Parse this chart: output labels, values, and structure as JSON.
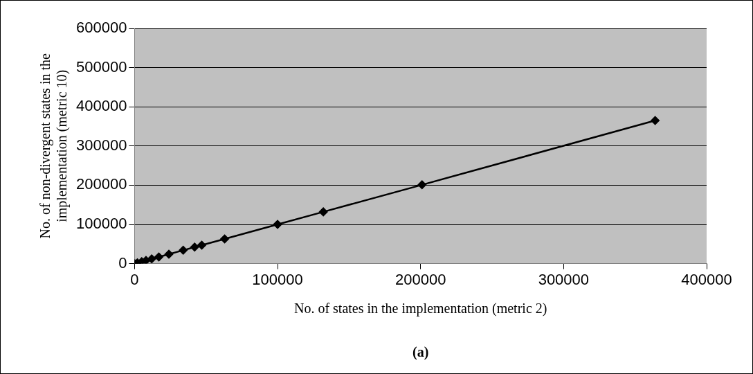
{
  "chart_data": {
    "type": "line",
    "xlabel": "No. of states in the implementation (metric 2)",
    "ylabel": "No. of non-divergent states in the implementation (metric 10)",
    "annotations": [
      "(a)"
    ],
    "x": [
      0,
      2000,
      5000,
      8000,
      12000,
      17000,
      24000,
      34000,
      42000,
      47000,
      63000,
      100000,
      132000,
      201000,
      364000
    ],
    "series": [
      {
        "color": "#000000",
        "values": [
          0,
          2000,
          5000,
          8000,
          12000,
          17000,
          24000,
          34000,
          42000,
          47000,
          63000,
          100000,
          132000,
          201000,
          365000
        ]
      }
    ],
    "xlim": [
      0,
      400000
    ],
    "xticks": [
      0,
      100000,
      200000,
      300000,
      400000
    ],
    "ylim": [
      0,
      600000
    ],
    "yticks": [
      0,
      100000,
      200000,
      300000,
      400000,
      500000,
      600000
    ],
    "grid": "y",
    "marker": "diamond",
    "line_style": "solid",
    "legend": false
  }
}
